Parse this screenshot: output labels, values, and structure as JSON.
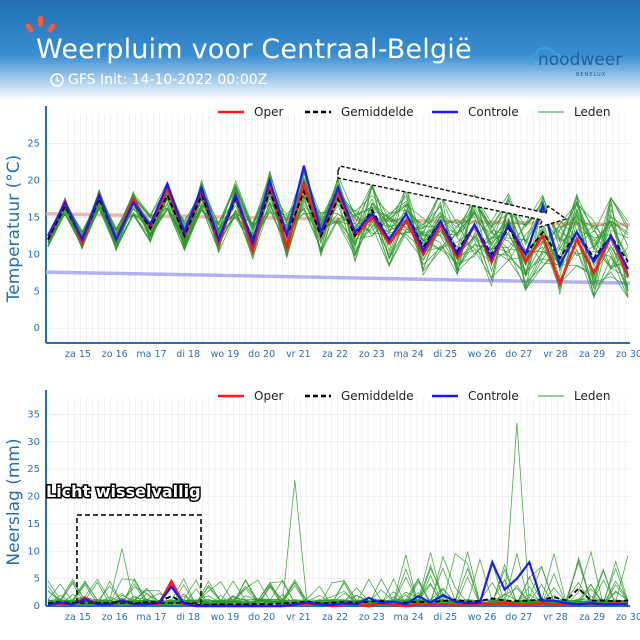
{
  "header": {
    "title": "Weerpluim voor  Centraal-België",
    "init": "GFS Init: 14-10-2022 00:00Z",
    "logo": "noodweer",
    "logo_sub": "BENELUX",
    "clock_icon": "clock-icon",
    "brand_color": "#1f6fb2"
  },
  "chart_data": [
    {
      "type": "line",
      "ylabel": "Temperatuur (°C)",
      "ylim": [
        -2,
        29
      ],
      "yticks": [
        0,
        5,
        10,
        15,
        20,
        25
      ],
      "xticks": [
        "za 15",
        "zo 16",
        "ma 17",
        "di 18",
        "wo 19",
        "do 20",
        "vr 21",
        "za 22",
        "zo 23",
        "ma 24",
        "di 25",
        "wo 26",
        "do 27",
        "vr 28",
        "za 29",
        "zo 30"
      ],
      "grid": true,
      "legend_position": "top",
      "legend": [
        "Oper",
        "Gemiddelde",
        "Controle",
        "Leden"
      ],
      "colors": {
        "Oper": "#ff1a1a",
        "Gemiddelde": "#000000",
        "Controle": "#1a1aff",
        "Leden": "#2e9a2e",
        "climate_max": "#f2a0a0",
        "climate_min": "#aaaaf2"
      },
      "climate_max": [
        15.5,
        15.4,
        15.3,
        15.2,
        15.1,
        15.0,
        14.9,
        14.8,
        14.7,
        14.6,
        14.5,
        14.4,
        14.3,
        14.2,
        14.1,
        14.0
      ],
      "climate_min": [
        7.6,
        7.5,
        7.4,
        7.3,
        7.2,
        7.1,
        7.0,
        6.9,
        6.8,
        6.7,
        6.6,
        6.5,
        6.4,
        6.3,
        6.2,
        6.1
      ],
      "series": [
        {
          "name": "Oper",
          "values": [
            12,
            17.2,
            11.5,
            18,
            12,
            17.5,
            13.5,
            19,
            12.5,
            18.5,
            11.5,
            18,
            10.5,
            19.5,
            11,
            19.5,
            12.5,
            18.5,
            12.5,
            15,
            11.5,
            14.5,
            10,
            14,
            9.5,
            14,
            9,
            14,
            9,
            12.5,
            6,
            12,
            7.5,
            12.5,
            7
          ]
        },
        {
          "name": "Gemiddelde",
          "values": [
            12,
            16.5,
            12,
            17.5,
            12,
            17,
            13.5,
            18,
            12.5,
            18,
            12,
            17.5,
            12,
            18.5,
            12.5,
            18.5,
            12.5,
            17.5,
            12.5,
            16,
            12,
            15.5,
            11,
            14.5,
            10.5,
            14,
            10,
            13.5,
            10,
            13,
            9.5,
            13,
            9.5,
            12.5,
            9
          ]
        },
        {
          "name": "Controle",
          "values": [
            12.5,
            17,
            12,
            18,
            12,
            17,
            14,
            19.5,
            13,
            19,
            12,
            18,
            11.5,
            20,
            12.5,
            22,
            13,
            19,
            13,
            15.5,
            12,
            15.5,
            10.5,
            14.5,
            10,
            14,
            9.5,
            14,
            10,
            16.5,
            8.5,
            13,
            9,
            12.5,
            8
          ]
        }
      ],
      "members_count": 30
    },
    {
      "type": "line",
      "ylabel": "Neerslag (mm)",
      "ylim": [
        0,
        38
      ],
      "yticks": [
        0,
        5,
        10,
        15,
        20,
        25,
        30,
        35
      ],
      "xticks": [
        "za 15",
        "zo 16",
        "ma 17",
        "di 18",
        "wo 19",
        "do 20",
        "vr 21",
        "za 22",
        "zo 23",
        "ma 24",
        "di 25",
        "wo 26",
        "do 27",
        "vr 28",
        "za 29",
        "zo 30"
      ],
      "grid": true,
      "legend_position": "top",
      "legend": [
        "Oper",
        "Gemiddelde",
        "Controle",
        "Leden"
      ],
      "annotation": "Licht wisselvallig",
      "series": [
        {
          "name": "Oper",
          "values": [
            0.3,
            0.5,
            0.2,
            1.5,
            0.3,
            0.2,
            1.0,
            0.3,
            0.3,
            0.4,
            4.5,
            0.3,
            0,
            0,
            0,
            0,
            0,
            0,
            0,
            0,
            0.2,
            0.5,
            0.3,
            0,
            0.2,
            0.3,
            0,
            0.5,
            0.2,
            0,
            0.3,
            0.2,
            0.3,
            0.2,
            0.2,
            0.5,
            0.3,
            0.5,
            0.3,
            0.2,
            0.5,
            0.2,
            0.3,
            0.2,
            0.3,
            0.2,
            0.5,
            0.3
          ]
        },
        {
          "name": "Gemiddelde",
          "values": [
            0.5,
            0.7,
            0.5,
            1.0,
            0.6,
            0.5,
            1.0,
            0.5,
            0.7,
            0.8,
            1.8,
            0.6,
            0.2,
            0.2,
            0.3,
            0.3,
            0.3,
            0.4,
            0.3,
            0.5,
            0.6,
            0.8,
            0.5,
            0.6,
            0.7,
            0.6,
            0.8,
            0.9,
            0.7,
            0.6,
            0.8,
            0.7,
            0.9,
            1.2,
            0.8,
            0.9,
            1.4,
            1.0,
            0.9,
            1.0,
            1.2,
            1.6,
            1.0,
            3.2,
            1.0,
            1.0,
            0.9,
            1.0
          ]
        },
        {
          "name": "Controle",
          "values": [
            0.2,
            0.6,
            0.3,
            1.2,
            0.3,
            0.3,
            1.0,
            0.3,
            0.3,
            0.6,
            3.5,
            0.5,
            0,
            0,
            0,
            0,
            0,
            0,
            0,
            0,
            0.3,
            0.6,
            0.3,
            0.2,
            0.5,
            0.3,
            1.5,
            0.5,
            0.8,
            0.3,
            1.8,
            0.6,
            2.0,
            0.8,
            0.5,
            0.6,
            8.0,
            3.0,
            5.0,
            8.0,
            1.0,
            1.0,
            0.5,
            0.3,
            0.5,
            0.3,
            0.3,
            0.3
          ]
        }
      ],
      "members_count": 30
    }
  ]
}
